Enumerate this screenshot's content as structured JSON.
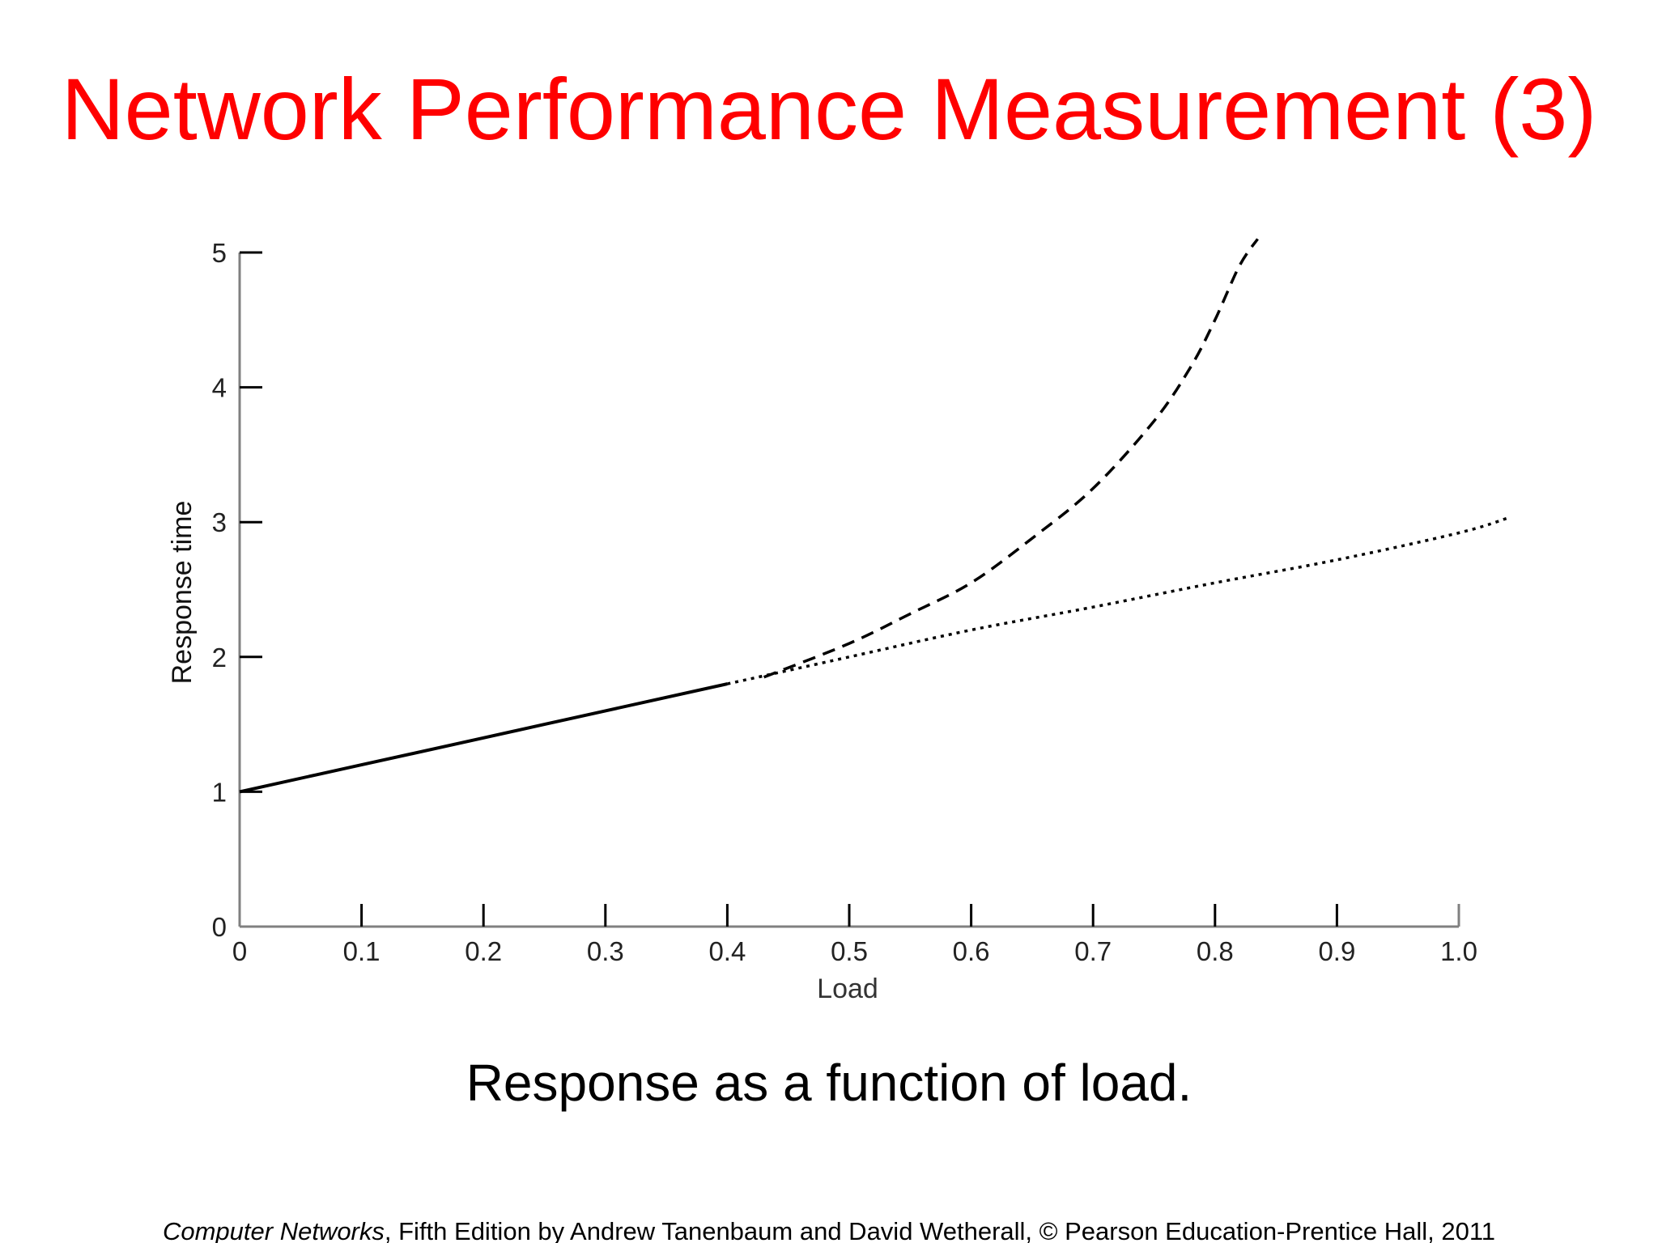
{
  "slide": {
    "title": "Network Performance Measurement (3)",
    "caption": "Response as a function of load.",
    "footer": {
      "book_title": "Computer Networks",
      "rest": ", Fifth Edition by Andrew Tanenbaum and David Wetherall, © Pearson Education-Prentice Hall, 2011"
    },
    "colors": {
      "title": "#ff0000",
      "text": "#000000",
      "axis": "#808080",
      "curve": "#000000"
    }
  },
  "chart_data": {
    "type": "line",
    "title": "",
    "xlabel": "Load",
    "ylabel": "Response time",
    "xlim": [
      0,
      1.0
    ],
    "ylim": [
      0,
      5
    ],
    "x_ticks": [
      {
        "value": 0,
        "label": "0"
      },
      {
        "value": 0.1,
        "label": "0.1"
      },
      {
        "value": 0.2,
        "label": "0.2"
      },
      {
        "value": 0.3,
        "label": "0.3"
      },
      {
        "value": 0.4,
        "label": "0.4"
      },
      {
        "value": 0.5,
        "label": "0.5"
      },
      {
        "value": 0.6,
        "label": "0.6"
      },
      {
        "value": 0.7,
        "label": "0.7"
      },
      {
        "value": 0.8,
        "label": "0.8"
      },
      {
        "value": 0.9,
        "label": "0.9"
      },
      {
        "value": 1.0,
        "label": "1.0"
      }
    ],
    "y_ticks": [
      {
        "value": 0,
        "label": "0"
      },
      {
        "value": 1,
        "label": "1"
      },
      {
        "value": 2,
        "label": "2"
      },
      {
        "value": 3,
        "label": "3"
      },
      {
        "value": 4,
        "label": "4"
      },
      {
        "value": 5,
        "label": "5"
      }
    ],
    "grid": false,
    "legend": "none",
    "series": [
      {
        "style": "solid",
        "x": [
          0,
          0.1,
          0.2,
          0.3,
          0.4
        ],
        "y": [
          1.0,
          1.2,
          1.4,
          1.6,
          1.8
        ]
      },
      {
        "style": "dotted",
        "x": [
          0.4,
          0.5,
          0.6,
          0.7,
          0.8,
          0.9,
          1.0,
          1.04
        ],
        "y": [
          1.8,
          2.0,
          2.2,
          2.37,
          2.55,
          2.72,
          2.92,
          3.03
        ]
      },
      {
        "style": "dashed",
        "x": [
          0.43,
          0.5,
          0.55,
          0.6,
          0.65,
          0.7,
          0.75,
          0.78,
          0.8,
          0.82,
          0.835
        ],
        "y": [
          1.85,
          2.1,
          2.32,
          2.55,
          2.88,
          3.25,
          3.75,
          4.15,
          4.5,
          4.9,
          5.1
        ]
      }
    ]
  }
}
